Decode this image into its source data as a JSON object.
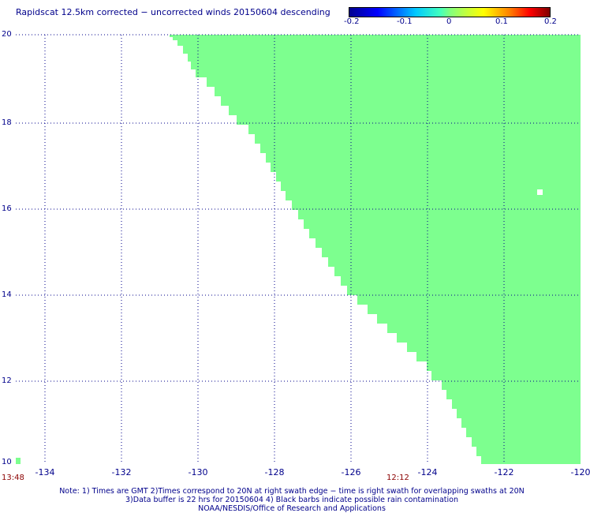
{
  "title": "Rapidscat 12.5km corrected − uncorrected winds 20150604 descending",
  "colorbar": {
    "labels": [
      "-0.2",
      "-0.1",
      "0",
      "0.1",
      "0.2"
    ],
    "range": [
      -0.2,
      0.2
    ]
  },
  "map": {
    "lon_range": [
      -135.3,
      -120
    ],
    "lat_range": [
      10,
      20
    ],
    "lon_ticks": [
      "-134",
      "-132",
      "-130",
      "-128",
      "-126",
      "-124",
      "-122",
      "-120"
    ],
    "lat_ticks": [
      "20",
      "18",
      "16",
      "14",
      "12",
      "10"
    ],
    "swath_color": "#7dff8f",
    "swath_value": 0,
    "grid": "dotted"
  },
  "times": {
    "left": "13:48",
    "middle": "12:12"
  },
  "notes": {
    "line1": "Note: 1) Times are GMT 2)Times correspond to 20N at right swath edge − time is right swath for overlapping swaths at 20N",
    "line2": "3)Data buffer is 22 hrs for 20150604 4) Black barbs indicate possible rain contamination",
    "line3": "NOAA/NESDIS/Office of Research and Applications"
  }
}
